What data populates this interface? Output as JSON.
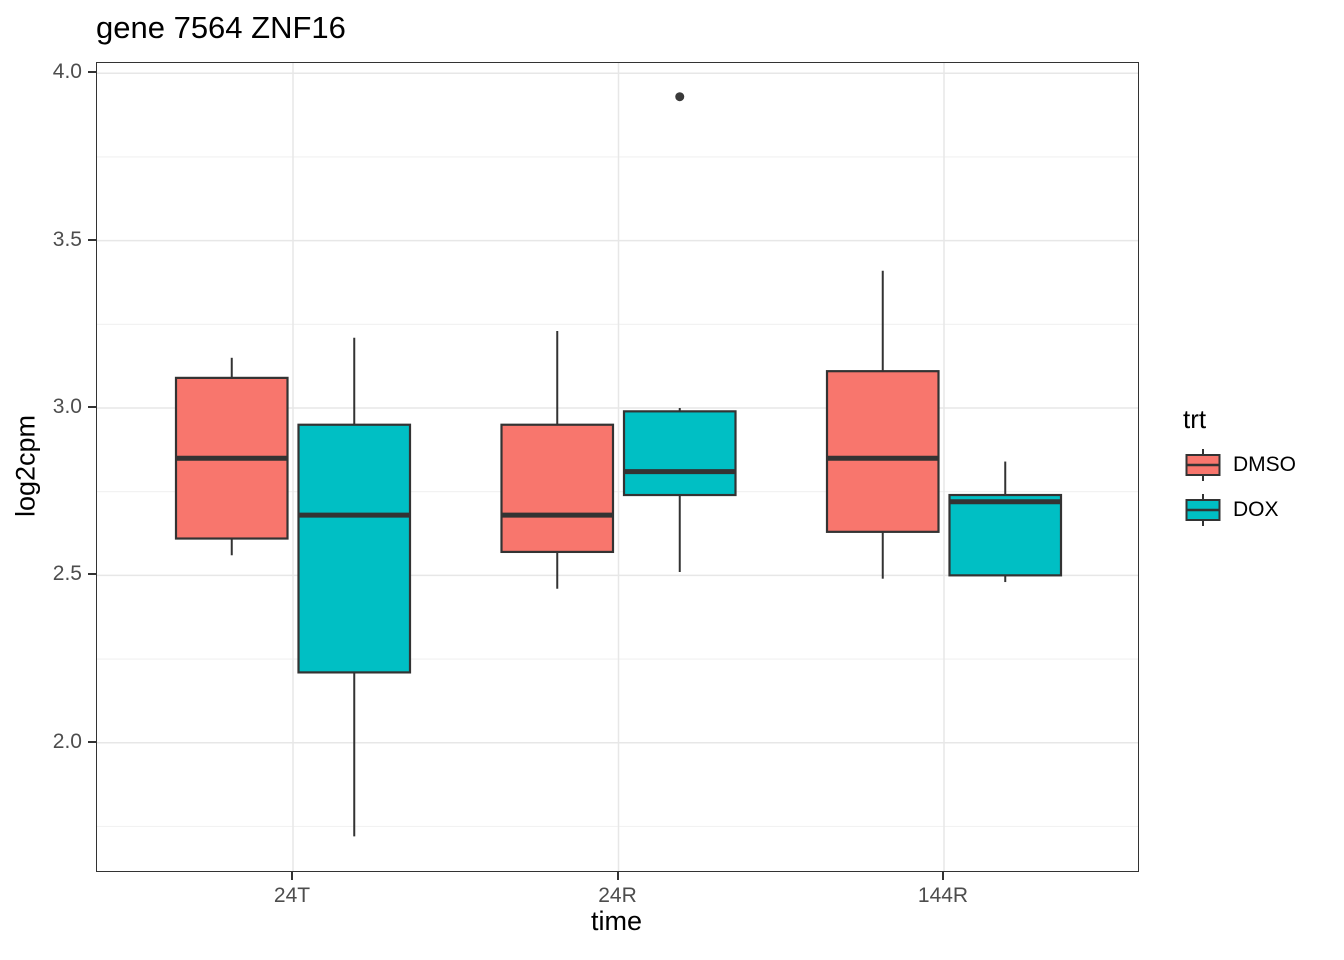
{
  "chart_data": {
    "type": "boxplot",
    "title": "gene 7564 ZNF16",
    "xlabel": "time",
    "ylabel": "log2cpm",
    "categories": [
      "24T",
      "24R",
      "144R"
    ],
    "y_ticks": [
      4.0,
      3.5,
      3.0,
      2.5,
      2.0
    ],
    "y_tick_labels": [
      "4.0",
      "3.5",
      "3.0",
      "2.5",
      "2.0"
    ],
    "y_minor_ticks": [
      3.75,
      3.25,
      2.75,
      2.25,
      1.75
    ],
    "ylim": [
      1.62,
      4.03
    ],
    "legend": {
      "title": "trt",
      "position": "right",
      "entries": [
        {
          "label": "DMSO",
          "color": "#F8766D"
        },
        {
          "label": "DOX",
          "color": "#00BFC4"
        }
      ]
    },
    "series": [
      {
        "name": "DMSO",
        "color": "#F8766D",
        "boxes": [
          {
            "category": "24T",
            "min": 2.56,
            "q1": 2.61,
            "median": 2.85,
            "q3": 3.09,
            "max": 3.15,
            "outliers": []
          },
          {
            "category": "24R",
            "min": 2.46,
            "q1": 2.57,
            "median": 2.68,
            "q3": 2.95,
            "max": 3.23,
            "outliers": []
          },
          {
            "category": "144R",
            "min": 2.49,
            "q1": 2.63,
            "median": 2.85,
            "q3": 3.11,
            "max": 3.41,
            "outliers": []
          }
        ]
      },
      {
        "name": "DOX",
        "color": "#00BFC4",
        "boxes": [
          {
            "category": "24T",
            "min": 1.72,
            "q1": 2.21,
            "median": 2.68,
            "q3": 2.95,
            "max": 3.21,
            "outliers": []
          },
          {
            "category": "24R",
            "min": 2.51,
            "q1": 2.74,
            "median": 2.81,
            "q3": 2.99,
            "max": 3.0,
            "outliers": [
              3.93
            ]
          },
          {
            "category": "144R",
            "min": 2.48,
            "q1": 2.5,
            "median": 2.72,
            "q3": 2.74,
            "max": 2.84,
            "outliers": []
          }
        ]
      }
    ]
  },
  "colors": {
    "background": "#FFFFFF",
    "panel_border": "#333333",
    "box_outline": "#333333",
    "median_line": "#333333",
    "whisker": "#333333",
    "outlier": "#3A3A3A",
    "grid_major": "#E7E7E7",
    "grid_minor": "#F1F1F1",
    "axis_text": "#4D4D4D",
    "tick_mark": "#333333"
  }
}
